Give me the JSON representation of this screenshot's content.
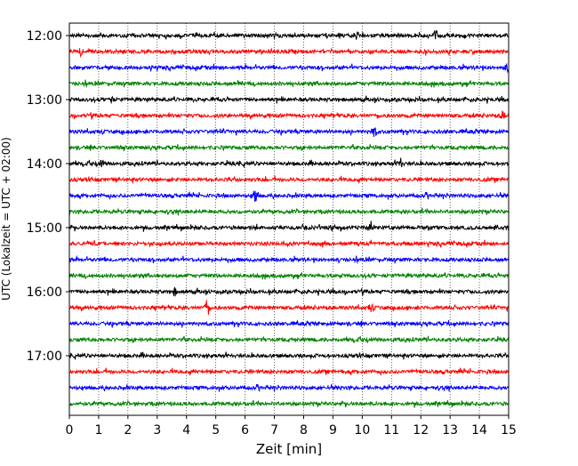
{
  "chart_data": {
    "type": "line",
    "title": "",
    "xlabel": "Zeit  [min]",
    "ylabel": "UTC (Lokalzeit = UTC + 02:00)",
    "xlim": [
      0,
      15
    ],
    "x_ticks": [
      0,
      1,
      2,
      3,
      4,
      5,
      6,
      7,
      8,
      9,
      10,
      11,
      12,
      13,
      14,
      15
    ],
    "x_tick_labels": [
      "0",
      "1",
      "2",
      "3",
      "4",
      "5",
      "6",
      "7",
      "8",
      "9",
      "10",
      "11",
      "12",
      "13",
      "14",
      "15"
    ],
    "y_tick_labels": [
      "12:00",
      "13:00",
      "14:00",
      "15:00",
      "16:00",
      "17:00"
    ],
    "y_tick_rows": [
      0,
      4,
      8,
      12,
      16,
      20
    ],
    "grid": "vertical dotted at each minute",
    "row_duration_min": 15,
    "colors_cycle": [
      "#000000",
      "#ff0000",
      "#0000ff",
      "#008000"
    ],
    "rows": [
      {
        "start": "12:00",
        "color": "#000000",
        "events": [
          [
            9.8,
            5
          ],
          [
            12.5,
            5
          ]
        ]
      },
      {
        "start": "12:15",
        "color": "#ff0000",
        "events": [
          [
            0.4,
            4
          ]
        ]
      },
      {
        "start": "12:30",
        "color": "#0000ff",
        "events": [
          [
            14.9,
            4
          ]
        ]
      },
      {
        "start": "12:45",
        "color": "#008000",
        "events": []
      },
      {
        "start": "13:00",
        "color": "#000000",
        "events": [
          [
            1.4,
            4
          ]
        ]
      },
      {
        "start": "13:15",
        "color": "#ff0000",
        "events": [
          [
            14.8,
            5
          ]
        ]
      },
      {
        "start": "13:30",
        "color": "#0000ff",
        "events": [
          [
            10.4,
            6
          ]
        ]
      },
      {
        "start": "13:45",
        "color": "#008000",
        "events": []
      },
      {
        "start": "14:00",
        "color": "#000000",
        "events": [
          [
            11.3,
            6
          ],
          [
            1.1,
            4
          ]
        ]
      },
      {
        "start": "14:15",
        "color": "#ff0000",
        "events": []
      },
      {
        "start": "14:30",
        "color": "#0000ff",
        "events": [
          [
            6.35,
            10
          ]
        ]
      },
      {
        "start": "14:45",
        "color": "#008000",
        "events": []
      },
      {
        "start": "15:00",
        "color": "#000000",
        "events": [
          [
            10.3,
            6
          ],
          [
            9.0,
            4
          ]
        ]
      },
      {
        "start": "15:15",
        "color": "#ff0000",
        "events": []
      },
      {
        "start": "15:30",
        "color": "#0000ff",
        "events": []
      },
      {
        "start": "15:45",
        "color": "#008000",
        "events": []
      },
      {
        "start": "16:00",
        "color": "#000000",
        "events": [
          [
            3.6,
            4
          ]
        ]
      },
      {
        "start": "16:15",
        "color": "#ff0000",
        "events": [
          [
            4.7,
            10
          ],
          [
            10.3,
            4
          ]
        ]
      },
      {
        "start": "16:30",
        "color": "#0000ff",
        "events": []
      },
      {
        "start": "16:45",
        "color": "#008000",
        "events": []
      },
      {
        "start": "17:00",
        "color": "#000000",
        "events": []
      },
      {
        "start": "17:15",
        "color": "#ff0000",
        "events": []
      },
      {
        "start": "17:30",
        "color": "#0000ff",
        "events": []
      },
      {
        "start": "17:45",
        "color": "#008000",
        "events": []
      }
    ]
  }
}
